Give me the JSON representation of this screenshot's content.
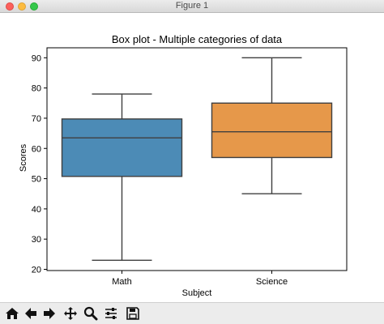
{
  "window": {
    "title": "Figure 1"
  },
  "toolbar": {
    "tools": [
      {
        "name": "home-icon"
      },
      {
        "name": "back-arrow-icon"
      },
      {
        "name": "forward-arrow-icon"
      },
      {
        "name": "pan-icon"
      },
      {
        "name": "zoom-icon"
      },
      {
        "name": "configure-subplots-icon"
      },
      {
        "name": "save-icon"
      }
    ]
  },
  "chart_data": {
    "type": "box",
    "title": "Box plot - Multiple categories of data",
    "xlabel": "Subject",
    "ylabel": "Scores",
    "ylim": [
      19.6,
      93.3
    ],
    "yticks": [
      20,
      30,
      40,
      50,
      60,
      70,
      80,
      90
    ],
    "grid": false,
    "categories": [
      "Math",
      "Science"
    ],
    "series": [
      {
        "category": "Math",
        "min": 23,
        "q1": 50.75,
        "median": 63.5,
        "q3": 69.75,
        "max": 78,
        "color": "#4c8bb6"
      },
      {
        "category": "Science",
        "min": 45,
        "q1": 57,
        "median": 65.5,
        "q3": 75,
        "max": 90,
        "color": "#e6984a"
      }
    ]
  }
}
